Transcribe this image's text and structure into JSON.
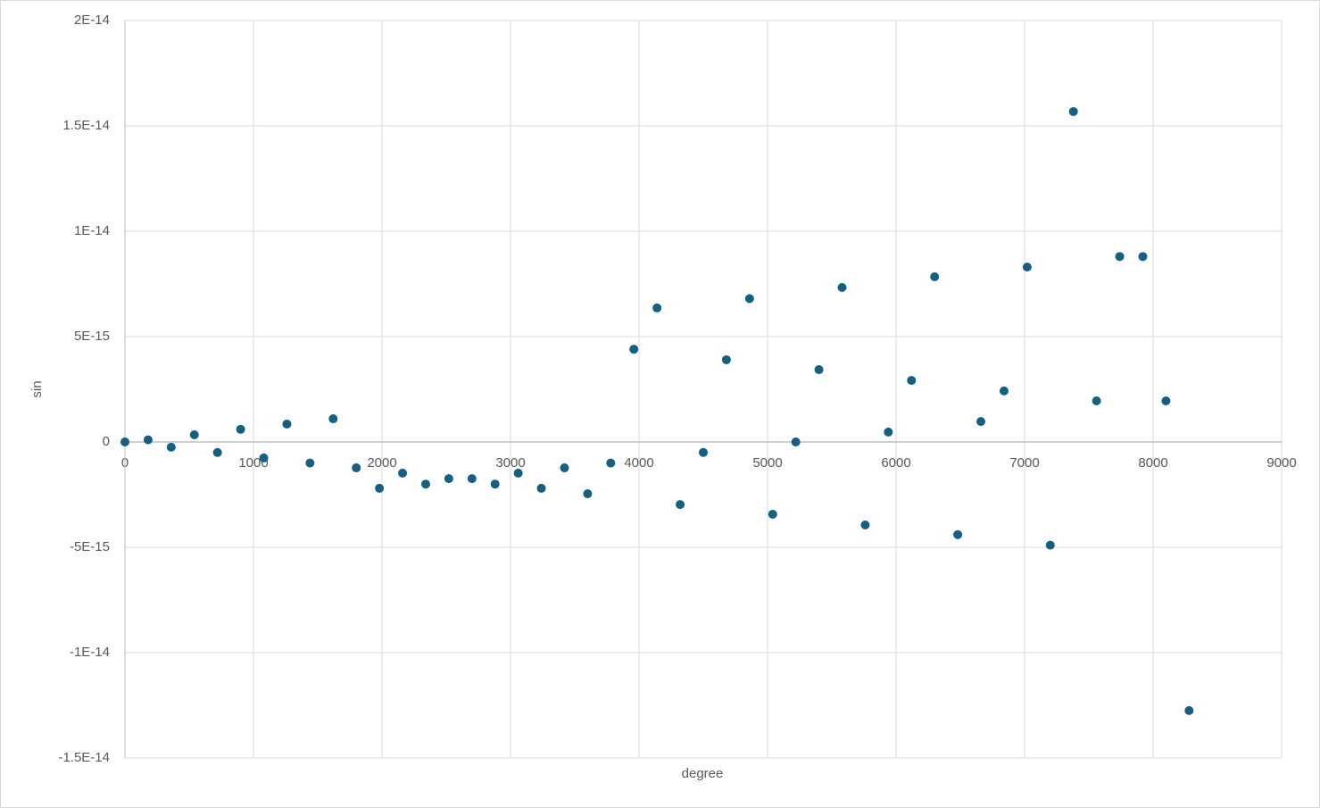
{
  "chart_data": {
    "type": "scatter",
    "x_label": "degree",
    "y_label": "sin",
    "x": [
      0,
      180,
      360,
      540,
      720,
      900,
      1080,
      1260,
      1440,
      1620,
      1800,
      1980,
      2160,
      2340,
      2520,
      2700,
      2880,
      3060,
      3240,
      3420,
      3600,
      3780,
      3960,
      4140,
      4320,
      4500,
      4680,
      4860,
      5040,
      5220,
      5400,
      5580,
      5760,
      5940,
      6120,
      6300,
      6480,
      6660,
      6840,
      7020,
      7200,
      7380,
      7560,
      7740,
      7920,
      8100,
      8280
    ],
    "series": [
      {
        "color": "#156082",
        "values": [
          0,
          1e-16,
          -2.5e-16,
          3.4e-16,
          -5e-16,
          6e-16,
          -7.6e-16,
          8.5e-16,
          -1e-15,
          1.1e-15,
          -1.23e-15,
          -2.2e-15,
          -1.48e-15,
          -2e-15,
          -1.74e-15,
          -1.74e-15,
          -2e-15,
          -1.48e-15,
          -2.2e-15,
          -1.23e-15,
          -2.46e-15,
          -1e-15,
          4.4e-15,
          6.36e-15,
          -2.97e-15,
          -5e-16,
          3.9e-15,
          6.8e-15,
          -3.43e-15,
          0,
          3.43e-15,
          7.33e-15,
          -3.94e-15,
          4.7e-16,
          2.92e-15,
          7.84e-15,
          -4.4e-15,
          9.7e-16,
          2.42e-15,
          8.3e-15,
          -4.9e-15,
          1.568e-14,
          1.95e-15,
          8.8e-15,
          8.8e-15,
          1.95e-15,
          -1.275e-14
        ]
      }
    ],
    "xlim": [
      0,
      9000
    ],
    "xticks": [
      0,
      1000,
      2000,
      3000,
      4000,
      5000,
      6000,
      7000,
      8000,
      9000
    ],
    "ylim": [
      -1.5e-14,
      2e-14
    ],
    "yticks": [
      {
        "value": -1.5e-14,
        "label": "-1.5E-14"
      },
      {
        "value": -1e-14,
        "label": "-1E-14"
      },
      {
        "value": -5e-15,
        "label": "-5E-15"
      },
      0,
      {
        "value": 5e-15,
        "label": "5E-15"
      },
      {
        "value": 1e-14,
        "label": "1E-14"
      },
      {
        "value": 1.5e-14,
        "label": "1.5E-14"
      },
      {
        "value": 2e-14,
        "label": "2E-14"
      }
    ],
    "grid": true
  }
}
